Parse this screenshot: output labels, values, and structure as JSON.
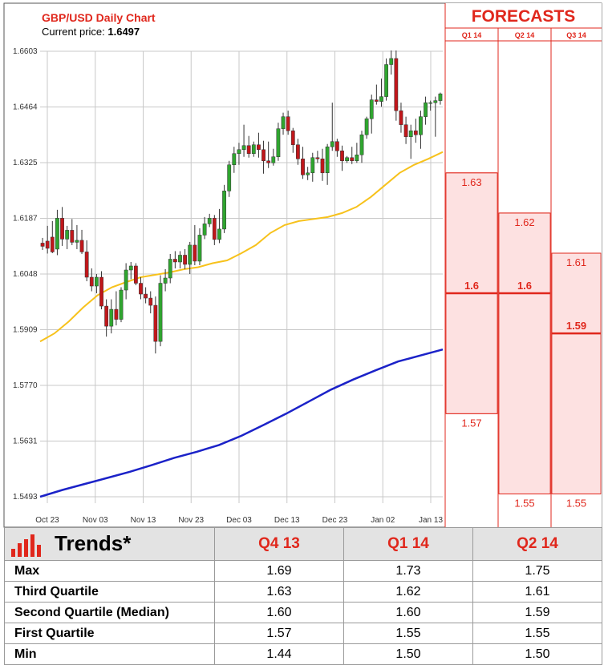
{
  "chart_data": {
    "type": "candlestick",
    "title": "GBP/USD Daily Chart",
    "current_price_label": "Current price:",
    "current_price": "1.6497",
    "y_ticks": [
      "1.6603",
      "1.6464",
      "1.6325",
      "1.6187",
      "1.6048",
      "1.5909",
      "1.5770",
      "1.5631",
      "1.5493"
    ],
    "ylim": [
      1.5493,
      1.6603
    ],
    "x_ticks": [
      "Oct 23",
      "Nov 03",
      "Nov 13",
      "Nov 23",
      "Dec 03",
      "Dec 13",
      "Dec 23",
      "Jan 02",
      "Jan 13"
    ],
    "grid": true,
    "candles": [
      {
        "o": 1.6125,
        "h": 1.6138,
        "l": 1.6108,
        "c": 1.6117
      },
      {
        "o": 1.613,
        "h": 1.6168,
        "l": 1.6099,
        "c": 1.6112
      },
      {
        "o": 1.614,
        "h": 1.618,
        "l": 1.61,
        "c": 1.6103
      },
      {
        "o": 1.611,
        "h": 1.6208,
        "l": 1.6095,
        "c": 1.6187
      },
      {
        "o": 1.6187,
        "h": 1.6215,
        "l": 1.6118,
        "c": 1.6135
      },
      {
        "o": 1.6135,
        "h": 1.6168,
        "l": 1.611,
        "c": 1.6157
      },
      {
        "o": 1.6157,
        "h": 1.6185,
        "l": 1.612,
        "c": 1.6127
      },
      {
        "o": 1.6127,
        "h": 1.617,
        "l": 1.611,
        "c": 1.6132
      },
      {
        "o": 1.6132,
        "h": 1.6158,
        "l": 1.6098,
        "c": 1.6103
      },
      {
        "o": 1.6103,
        "h": 1.6132,
        "l": 1.603,
        "c": 1.604
      },
      {
        "o": 1.604,
        "h": 1.6062,
        "l": 1.6005,
        "c": 1.6018
      },
      {
        "o": 1.6018,
        "h": 1.6048,
        "l": 1.6,
        "c": 1.604
      },
      {
        "o": 1.604,
        "h": 1.6055,
        "l": 1.596,
        "c": 1.5968
      },
      {
        "o": 1.5968,
        "h": 1.5985,
        "l": 1.5892,
        "c": 1.5918
      },
      {
        "o": 1.5918,
        "h": 1.5985,
        "l": 1.59,
        "c": 1.596
      },
      {
        "o": 1.596,
        "h": 1.6005,
        "l": 1.592,
        "c": 1.5935
      },
      {
        "o": 1.5935,
        "h": 1.6015,
        "l": 1.5928,
        "c": 1.6008
      },
      {
        "o": 1.6008,
        "h": 1.6075,
        "l": 1.5985,
        "c": 1.6058
      },
      {
        "o": 1.6058,
        "h": 1.6078,
        "l": 1.6035,
        "c": 1.6068
      },
      {
        "o": 1.6068,
        "h": 1.6075,
        "l": 1.602,
        "c": 1.6025
      },
      {
        "o": 1.6025,
        "h": 1.604,
        "l": 1.5985,
        "c": 1.5998
      },
      {
        "o": 1.5998,
        "h": 1.6015,
        "l": 1.5975,
        "c": 1.5988
      },
      {
        "o": 1.5988,
        "h": 1.6005,
        "l": 1.595,
        "c": 1.597
      },
      {
        "o": 1.597,
        "h": 1.5992,
        "l": 1.585,
        "c": 1.588
      },
      {
        "o": 1.588,
        "h": 1.6045,
        "l": 1.5868,
        "c": 1.6025
      },
      {
        "o": 1.6025,
        "h": 1.606,
        "l": 1.6005,
        "c": 1.6038
      },
      {
        "o": 1.6038,
        "h": 1.6098,
        "l": 1.6025,
        "c": 1.6085
      },
      {
        "o": 1.6085,
        "h": 1.6105,
        "l": 1.6062,
        "c": 1.6078
      },
      {
        "o": 1.6078,
        "h": 1.6105,
        "l": 1.6062,
        "c": 1.6095
      },
      {
        "o": 1.6095,
        "h": 1.611,
        "l": 1.606,
        "c": 1.6072
      },
      {
        "o": 1.6072,
        "h": 1.6128,
        "l": 1.6048,
        "c": 1.612
      },
      {
        "o": 1.612,
        "h": 1.617,
        "l": 1.607,
        "c": 1.608
      },
      {
        "o": 1.608,
        "h": 1.6162,
        "l": 1.607,
        "c": 1.6145
      },
      {
        "o": 1.6145,
        "h": 1.619,
        "l": 1.6135,
        "c": 1.6173
      },
      {
        "o": 1.6173,
        "h": 1.6198,
        "l": 1.6165,
        "c": 1.6187
      },
      {
        "o": 1.6187,
        "h": 1.6195,
        "l": 1.612,
        "c": 1.6134
      },
      {
        "o": 1.6134,
        "h": 1.621,
        "l": 1.6125,
        "c": 1.616
      },
      {
        "o": 1.616,
        "h": 1.627,
        "l": 1.615,
        "c": 1.6255
      },
      {
        "o": 1.6255,
        "h": 1.633,
        "l": 1.624,
        "c": 1.632
      },
      {
        "o": 1.632,
        "h": 1.6365,
        "l": 1.63,
        "c": 1.6348
      },
      {
        "o": 1.6348,
        "h": 1.6375,
        "l": 1.632,
        "c": 1.6358
      },
      {
        "o": 1.6358,
        "h": 1.642,
        "l": 1.634,
        "c": 1.6368
      },
      {
        "o": 1.6368,
        "h": 1.6392,
        "l": 1.6338,
        "c": 1.6348
      },
      {
        "o": 1.6348,
        "h": 1.6378,
        "l": 1.634,
        "c": 1.637
      },
      {
        "o": 1.637,
        "h": 1.64,
        "l": 1.6338,
        "c": 1.6358
      },
      {
        "o": 1.6358,
        "h": 1.638,
        "l": 1.6298,
        "c": 1.633
      },
      {
        "o": 1.633,
        "h": 1.6378,
        "l": 1.6312,
        "c": 1.6325
      },
      {
        "o": 1.6325,
        "h": 1.636,
        "l": 1.6318,
        "c": 1.634
      },
      {
        "o": 1.634,
        "h": 1.6425,
        "l": 1.633,
        "c": 1.641
      },
      {
        "o": 1.641,
        "h": 1.645,
        "l": 1.6395,
        "c": 1.644
      },
      {
        "o": 1.644,
        "h": 1.6455,
        "l": 1.6395,
        "c": 1.6405
      },
      {
        "o": 1.6405,
        "h": 1.6412,
        "l": 1.635,
        "c": 1.637
      },
      {
        "o": 1.637,
        "h": 1.6385,
        "l": 1.632,
        "c": 1.6335
      },
      {
        "o": 1.6335,
        "h": 1.6365,
        "l": 1.6285,
        "c": 1.6295
      },
      {
        "o": 1.6295,
        "h": 1.6315,
        "l": 1.6282,
        "c": 1.63
      },
      {
        "o": 1.63,
        "h": 1.635,
        "l": 1.6278,
        "c": 1.6338
      },
      {
        "o": 1.6338,
        "h": 1.6355,
        "l": 1.6325,
        "c": 1.6335
      },
      {
        "o": 1.6335,
        "h": 1.636,
        "l": 1.628,
        "c": 1.63
      },
      {
        "o": 1.63,
        "h": 1.6372,
        "l": 1.627,
        "c": 1.6365
      },
      {
        "o": 1.6365,
        "h": 1.6475,
        "l": 1.6355,
        "c": 1.6378
      },
      {
        "o": 1.6378,
        "h": 1.6385,
        "l": 1.634,
        "c": 1.6355
      },
      {
        "o": 1.6355,
        "h": 1.6368,
        "l": 1.6305,
        "c": 1.633
      },
      {
        "o": 1.633,
        "h": 1.6342,
        "l": 1.6325,
        "c": 1.6338
      },
      {
        "o": 1.6338,
        "h": 1.6365,
        "l": 1.6322,
        "c": 1.633
      },
      {
        "o": 1.633,
        "h": 1.6375,
        "l": 1.6325,
        "c": 1.6345
      },
      {
        "o": 1.6345,
        "h": 1.6405,
        "l": 1.6325,
        "c": 1.6395
      },
      {
        "o": 1.6395,
        "h": 1.644,
        "l": 1.6385,
        "c": 1.6435
      },
      {
        "o": 1.6435,
        "h": 1.6495,
        "l": 1.6398,
        "c": 1.6482
      },
      {
        "o": 1.6482,
        "h": 1.652,
        "l": 1.647,
        "c": 1.6478
      },
      {
        "o": 1.6478,
        "h": 1.6535,
        "l": 1.6465,
        "c": 1.649
      },
      {
        "o": 1.649,
        "h": 1.6585,
        "l": 1.648,
        "c": 1.657
      },
      {
        "o": 1.657,
        "h": 1.6605,
        "l": 1.6545,
        "c": 1.6585
      },
      {
        "o": 1.6585,
        "h": 1.6605,
        "l": 1.643,
        "c": 1.6455
      },
      {
        "o": 1.6455,
        "h": 1.6475,
        "l": 1.64,
        "c": 1.642
      },
      {
        "o": 1.642,
        "h": 1.644,
        "l": 1.6372,
        "c": 1.639
      },
      {
        "o": 1.639,
        "h": 1.642,
        "l": 1.6335,
        "c": 1.6405
      },
      {
        "o": 1.6405,
        "h": 1.6435,
        "l": 1.6375,
        "c": 1.6395
      },
      {
        "o": 1.6395,
        "h": 1.6455,
        "l": 1.636,
        "c": 1.644
      },
      {
        "o": 1.644,
        "h": 1.649,
        "l": 1.642,
        "c": 1.6475
      },
      {
        "o": 1.6475,
        "h": 1.648,
        "l": 1.6455,
        "c": 1.6475
      },
      {
        "o": 1.6475,
        "h": 1.649,
        "l": 1.639,
        "c": 1.648
      },
      {
        "o": 1.648,
        "h": 1.65,
        "l": 1.647,
        "c": 1.6497
      }
    ],
    "series": [
      {
        "color": "#f7c21c",
        "values": [
          1.588,
          1.59,
          1.593,
          1.5965,
          1.5995,
          1.6015,
          1.6028,
          1.604,
          1.6046,
          1.6052,
          1.606,
          1.6065,
          1.6075,
          1.6082,
          1.61,
          1.612,
          1.615,
          1.617,
          1.618,
          1.6185,
          1.619,
          1.62,
          1.6215,
          1.624,
          1.627,
          1.63,
          1.632,
          1.6335,
          1.6352
        ]
      },
      {
        "color": "#1b22c8",
        "values": [
          1.5493,
          1.551,
          1.5525,
          1.554,
          1.5555,
          1.5572,
          1.559,
          1.5605,
          1.5622,
          1.5645,
          1.5672,
          1.57,
          1.573,
          1.576,
          1.5785,
          1.5808,
          1.583,
          1.5845,
          1.586
        ]
      }
    ]
  },
  "forecasts": {
    "title": "FORECASTS",
    "quarters": [
      {
        "label": "Q1 14",
        "values": [
          {
            "text": "1.63",
            "v": 1.63,
            "type": "q3"
          },
          {
            "text": "1.6",
            "v": 1.6,
            "type": "median"
          },
          {
            "text": "1.57",
            "v": 1.57,
            "type": "q1"
          }
        ]
      },
      {
        "label": "Q2 14",
        "values": [
          {
            "text": "1.62",
            "v": 1.62,
            "type": "q3"
          },
          {
            "text": "1.6",
            "v": 1.6,
            "type": "median"
          },
          {
            "text": "1.55",
            "v": 1.55,
            "type": "q1"
          }
        ]
      },
      {
        "label": "Q3 14",
        "values": [
          {
            "text": "1.61",
            "v": 1.61,
            "type": "q3"
          },
          {
            "text": "1.59",
            "v": 1.59,
            "type": "median"
          },
          {
            "text": "1.55",
            "v": 1.55,
            "type": "q1"
          }
        ]
      }
    ]
  },
  "trends": {
    "title": "Trends*",
    "columns": [
      "Q4 13",
      "Q1 14",
      "Q2 14"
    ],
    "rows": [
      {
        "label": "Max",
        "values": [
          "1.69",
          "1.73",
          "1.75"
        ]
      },
      {
        "label": "Third Quartile",
        "values": [
          "1.63",
          "1.62",
          "1.61"
        ]
      },
      {
        "label": "Second Quartile (Median)",
        "values": [
          "1.60",
          "1.60",
          "1.59"
        ]
      },
      {
        "label": "First Quartile",
        "values": [
          "1.57",
          "1.55",
          "1.55"
        ]
      },
      {
        "label": "Min",
        "values": [
          "1.44",
          "1.50",
          "1.50"
        ]
      }
    ],
    "icon_bar_levels": [
      0.35,
      0.6,
      0.8,
      1.0,
      0.55
    ]
  }
}
